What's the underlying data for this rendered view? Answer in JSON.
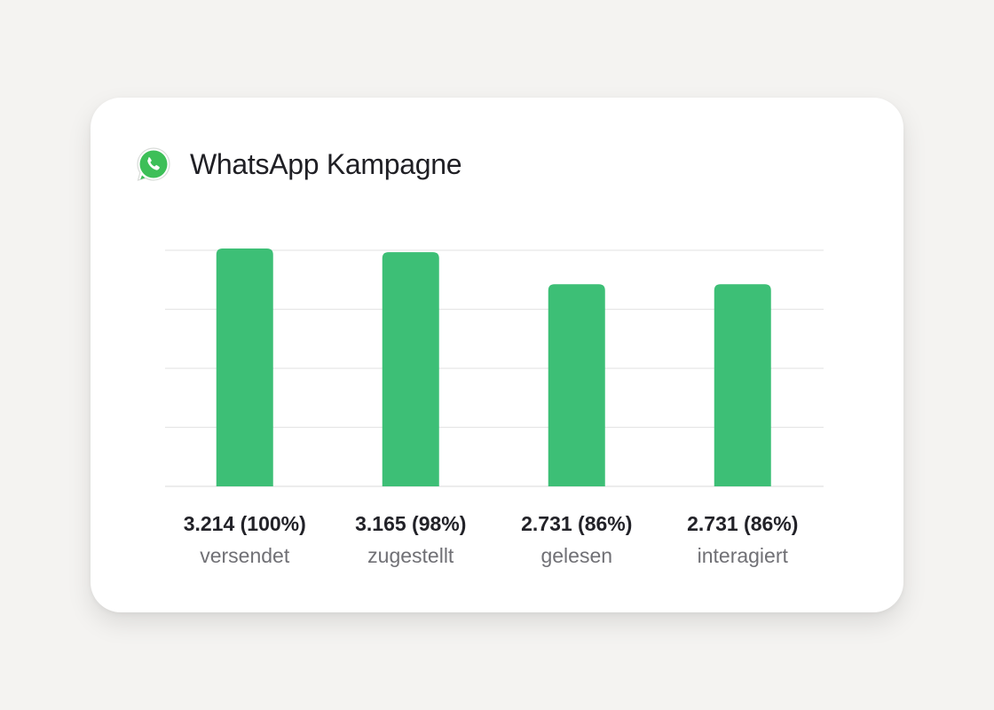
{
  "card": {
    "title": "WhatsApp Kampagne",
    "icon": "whatsapp-icon"
  },
  "colors": {
    "background": "#f4f3f1",
    "card": "#ffffff",
    "bar": "#3dbf76",
    "grid": "#e6e6e6",
    "whatsapp_green": "#3dbf58"
  },
  "chart_data": {
    "type": "bar",
    "categories": [
      "versendet",
      "zugestellt",
      "gelesen",
      "interagiert"
    ],
    "values": [
      3214,
      3165,
      2731,
      2731
    ],
    "value_labels": [
      "3.214 (100%)",
      "3.165 (98%)",
      "2.731 (86%)",
      "2.731 (86%)"
    ],
    "title": "WhatsApp Kampagne",
    "xlabel": "",
    "ylabel": "",
    "grid": true,
    "gridlines": 5,
    "legend": "none"
  }
}
